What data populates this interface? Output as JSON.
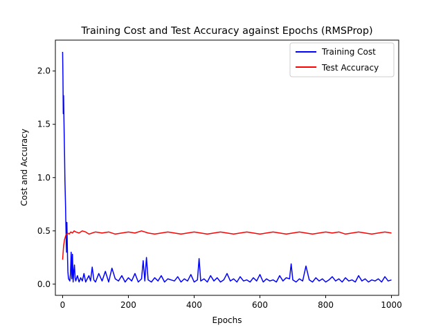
{
  "chart_data": {
    "type": "line",
    "title": "Training Cost and Test Accuracy against Epochs (RMSProp)",
    "xlabel": "Epochs",
    "ylabel": "Cost and Accuracy",
    "xlim": [
      -22,
      1022
    ],
    "ylim": [
      -0.105,
      2.29
    ],
    "xticks": [
      0,
      200,
      400,
      600,
      800,
      1000
    ],
    "yticks": [
      0.0,
      0.5,
      1.0,
      1.5,
      2.0
    ],
    "xtick_labels": [
      "0",
      "200",
      "400",
      "600",
      "800",
      "1000"
    ],
    "ytick_labels": [
      "0.0",
      "0.5",
      "1.0",
      "1.5",
      "2.0"
    ],
    "grid": false,
    "legend_position": "top-right",
    "series": [
      {
        "name": "Training Cost",
        "color": "#0000ff",
        "x": [
          0,
          1,
          2,
          3,
          4,
          5,
          6,
          7,
          8,
          9,
          10,
          11,
          12,
          13,
          14,
          15,
          16,
          17,
          18,
          20,
          22,
          24,
          26,
          28,
          30,
          32,
          34,
          36,
          38,
          40,
          45,
          50,
          55,
          60,
          65,
          70,
          75,
          80,
          85,
          90,
          95,
          100,
          110,
          120,
          130,
          140,
          150,
          160,
          170,
          180,
          190,
          200,
          210,
          220,
          230,
          240,
          245,
          250,
          255,
          260,
          270,
          280,
          290,
          300,
          310,
          320,
          330,
          340,
          350,
          360,
          370,
          380,
          390,
          400,
          410,
          412,
          415,
          420,
          430,
          440,
          450,
          460,
          470,
          480,
          490,
          500,
          510,
          520,
          530,
          540,
          550,
          560,
          570,
          580,
          590,
          600,
          610,
          620,
          630,
          640,
          650,
          660,
          670,
          680,
          690,
          695,
          700,
          710,
          720,
          730,
          740,
          750,
          760,
          770,
          780,
          790,
          800,
          810,
          820,
          830,
          840,
          850,
          860,
          870,
          880,
          890,
          900,
          910,
          920,
          930,
          940,
          950,
          960,
          970,
          980,
          990,
          1000
        ],
        "values": [
          2.18,
          1.95,
          1.6,
          1.77,
          1.55,
          1.37,
          1.2,
          0.98,
          0.85,
          0.72,
          0.55,
          0.4,
          0.3,
          0.58,
          0.42,
          0.25,
          0.12,
          0.08,
          0.05,
          0.04,
          0.03,
          0.1,
          0.3,
          0.05,
          0.28,
          0.02,
          0.12,
          0.18,
          0.06,
          0.03,
          0.08,
          0.02,
          0.06,
          0.03,
          0.1,
          0.02,
          0.05,
          0.08,
          0.03,
          0.16,
          0.04,
          0.02,
          0.1,
          0.03,
          0.12,
          0.02,
          0.15,
          0.05,
          0.03,
          0.08,
          0.02,
          0.06,
          0.03,
          0.1,
          0.02,
          0.05,
          0.22,
          0.03,
          0.25,
          0.04,
          0.02,
          0.06,
          0.03,
          0.08,
          0.02,
          0.05,
          0.04,
          0.03,
          0.07,
          0.02,
          0.05,
          0.03,
          0.09,
          0.02,
          0.04,
          0.12,
          0.24,
          0.03,
          0.05,
          0.02,
          0.08,
          0.03,
          0.06,
          0.02,
          0.04,
          0.1,
          0.03,
          0.05,
          0.02,
          0.07,
          0.03,
          0.04,
          0.02,
          0.06,
          0.03,
          0.09,
          0.02,
          0.05,
          0.03,
          0.04,
          0.02,
          0.08,
          0.03,
          0.06,
          0.05,
          0.19,
          0.04,
          0.02,
          0.05,
          0.03,
          0.17,
          0.04,
          0.02,
          0.06,
          0.03,
          0.05,
          0.02,
          0.04,
          0.07,
          0.03,
          0.05,
          0.02,
          0.06,
          0.03,
          0.04,
          0.02,
          0.08,
          0.03,
          0.05,
          0.02,
          0.04,
          0.03,
          0.05,
          0.02,
          0.07,
          0.03,
          0.04
        ]
      },
      {
        "name": "Test Accuracy",
        "color": "#ff0000",
        "x": [
          0,
          3,
          6,
          10,
          15,
          20,
          25,
          30,
          35,
          40,
          50,
          60,
          70,
          80,
          90,
          100,
          120,
          140,
          160,
          180,
          200,
          220,
          240,
          260,
          280,
          300,
          320,
          340,
          360,
          380,
          400,
          420,
          440,
          460,
          480,
          500,
          520,
          540,
          560,
          580,
          600,
          620,
          640,
          660,
          680,
          700,
          720,
          740,
          760,
          780,
          800,
          820,
          840,
          860,
          880,
          900,
          920,
          940,
          960,
          980,
          1000
        ],
        "values": [
          0.23,
          0.36,
          0.42,
          0.46,
          0.48,
          0.47,
          0.49,
          0.48,
          0.5,
          0.49,
          0.48,
          0.5,
          0.49,
          0.47,
          0.48,
          0.49,
          0.48,
          0.49,
          0.47,
          0.48,
          0.49,
          0.48,
          0.5,
          0.48,
          0.47,
          0.48,
          0.49,
          0.48,
          0.47,
          0.48,
          0.49,
          0.48,
          0.47,
          0.48,
          0.49,
          0.48,
          0.47,
          0.48,
          0.49,
          0.48,
          0.47,
          0.48,
          0.49,
          0.48,
          0.47,
          0.48,
          0.49,
          0.48,
          0.47,
          0.48,
          0.49,
          0.48,
          0.49,
          0.47,
          0.48,
          0.49,
          0.48,
          0.47,
          0.48,
          0.49,
          0.48
        ]
      }
    ]
  }
}
